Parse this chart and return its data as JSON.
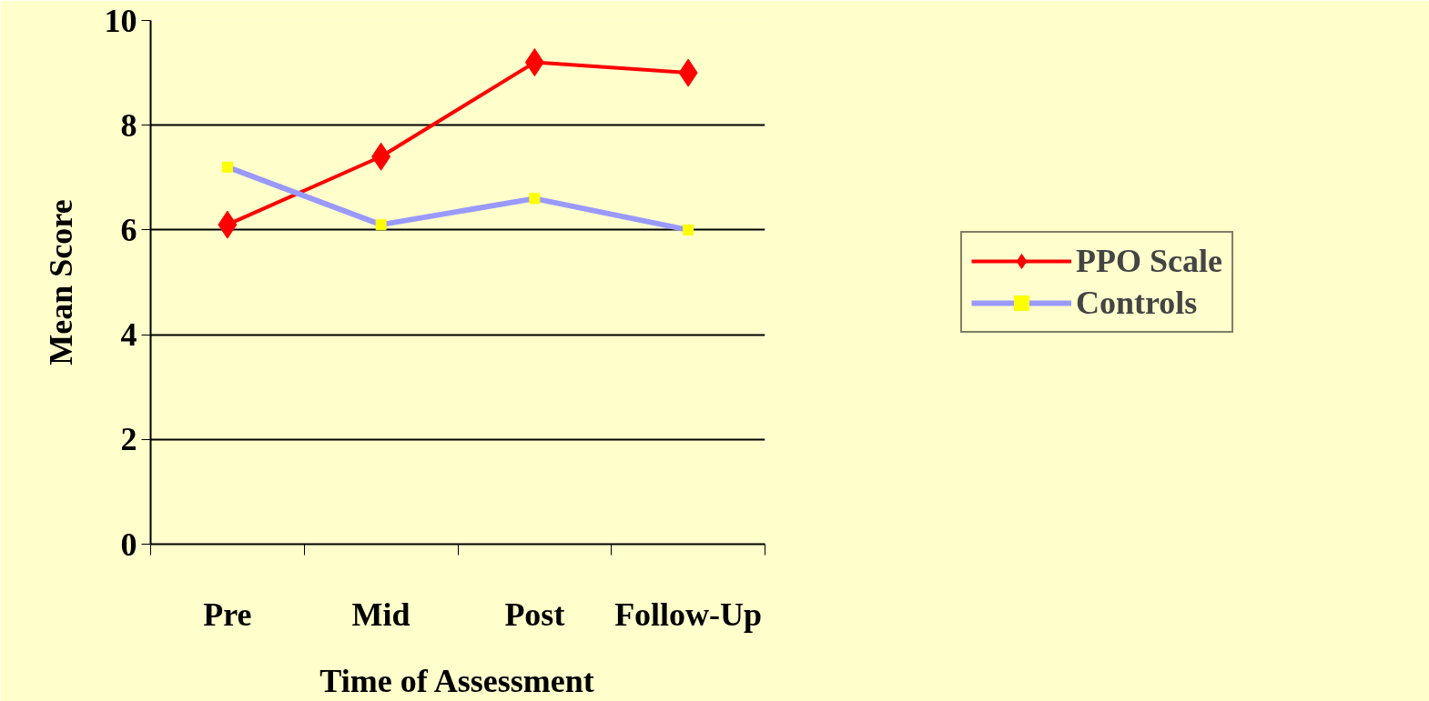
{
  "chart_data": {
    "type": "line",
    "xlabel": "Time of Assessment",
    "ylabel": "Mean Score",
    "categories": [
      "Pre",
      "Mid",
      "Post",
      "Follow-Up"
    ],
    "series": [
      {
        "name": "PPO Scale",
        "color": "#ff0000",
        "marker": "diamond",
        "values": [
          6.1,
          7.4,
          9.2,
          9.0
        ]
      },
      {
        "name": "Controls",
        "color": "#9999ff",
        "marker": "square",
        "values": [
          7.2,
          6.1,
          6.6,
          6.0
        ]
      }
    ],
    "ylim": [
      0,
      10
    ],
    "yticks": [
      0,
      2,
      4,
      6,
      8,
      10
    ],
    "grid": "y",
    "legend": "right"
  }
}
